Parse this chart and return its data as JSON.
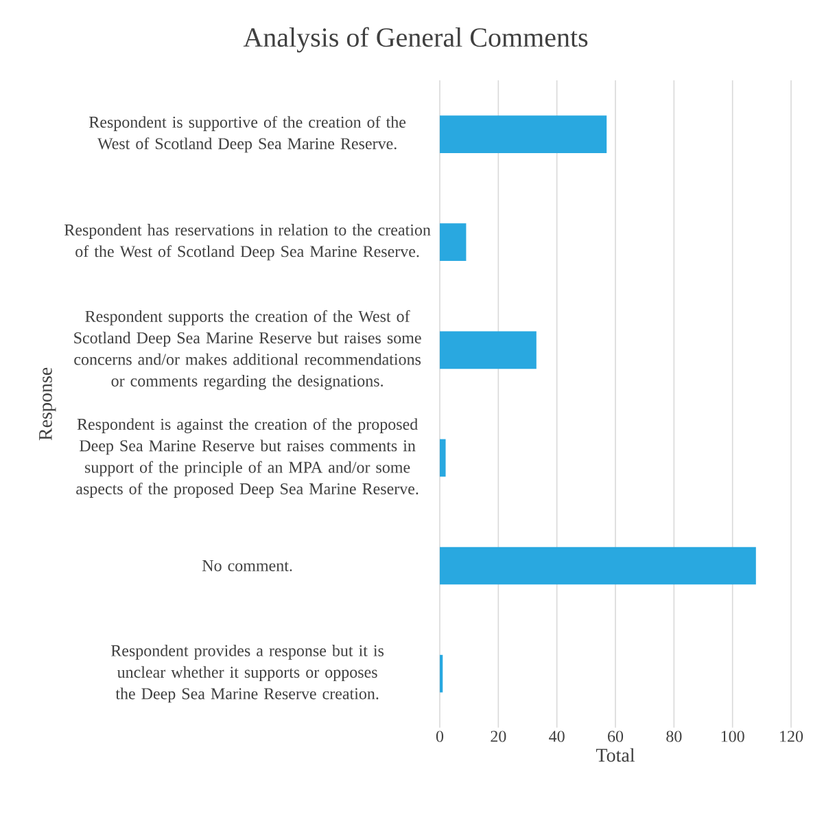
{
  "chart_data": {
    "type": "bar",
    "orientation": "horizontal",
    "title": "Analysis  of  General  Comments",
    "xlabel": "Total",
    "ylabel": "Response",
    "categories": [
      "Respondent is supportive of the creation of the West of Scotland Deep Sea Marine Reserve.",
      "Respondent has reservations in relation to the creation of the West of Scotland Deep Sea Marine Reserve.",
      "Respondent supports the creation of the West of Scotland Deep Sea Marine Reserve but raises some concerns and/or makes additional recommendations or comments regarding the designations.",
      "Respondent is against the creation of the proposed Deep Sea Marine Reserve but raises comments in support of the principle of an MPA and/or some aspects of the proposed Deep Sea Marine Reserve.",
      "No comment.",
      "Respondent provides a response but it is unclear whether it supports or opposes the Deep Sea Marine Reserve creation."
    ],
    "values": [
      57,
      9,
      33,
      2,
      108,
      1
    ],
    "color": "#29a8e0",
    "xlim": [
      0,
      120
    ],
    "xticks": [
      0,
      20,
      40,
      60,
      80,
      100,
      120
    ],
    "grid": "x"
  }
}
